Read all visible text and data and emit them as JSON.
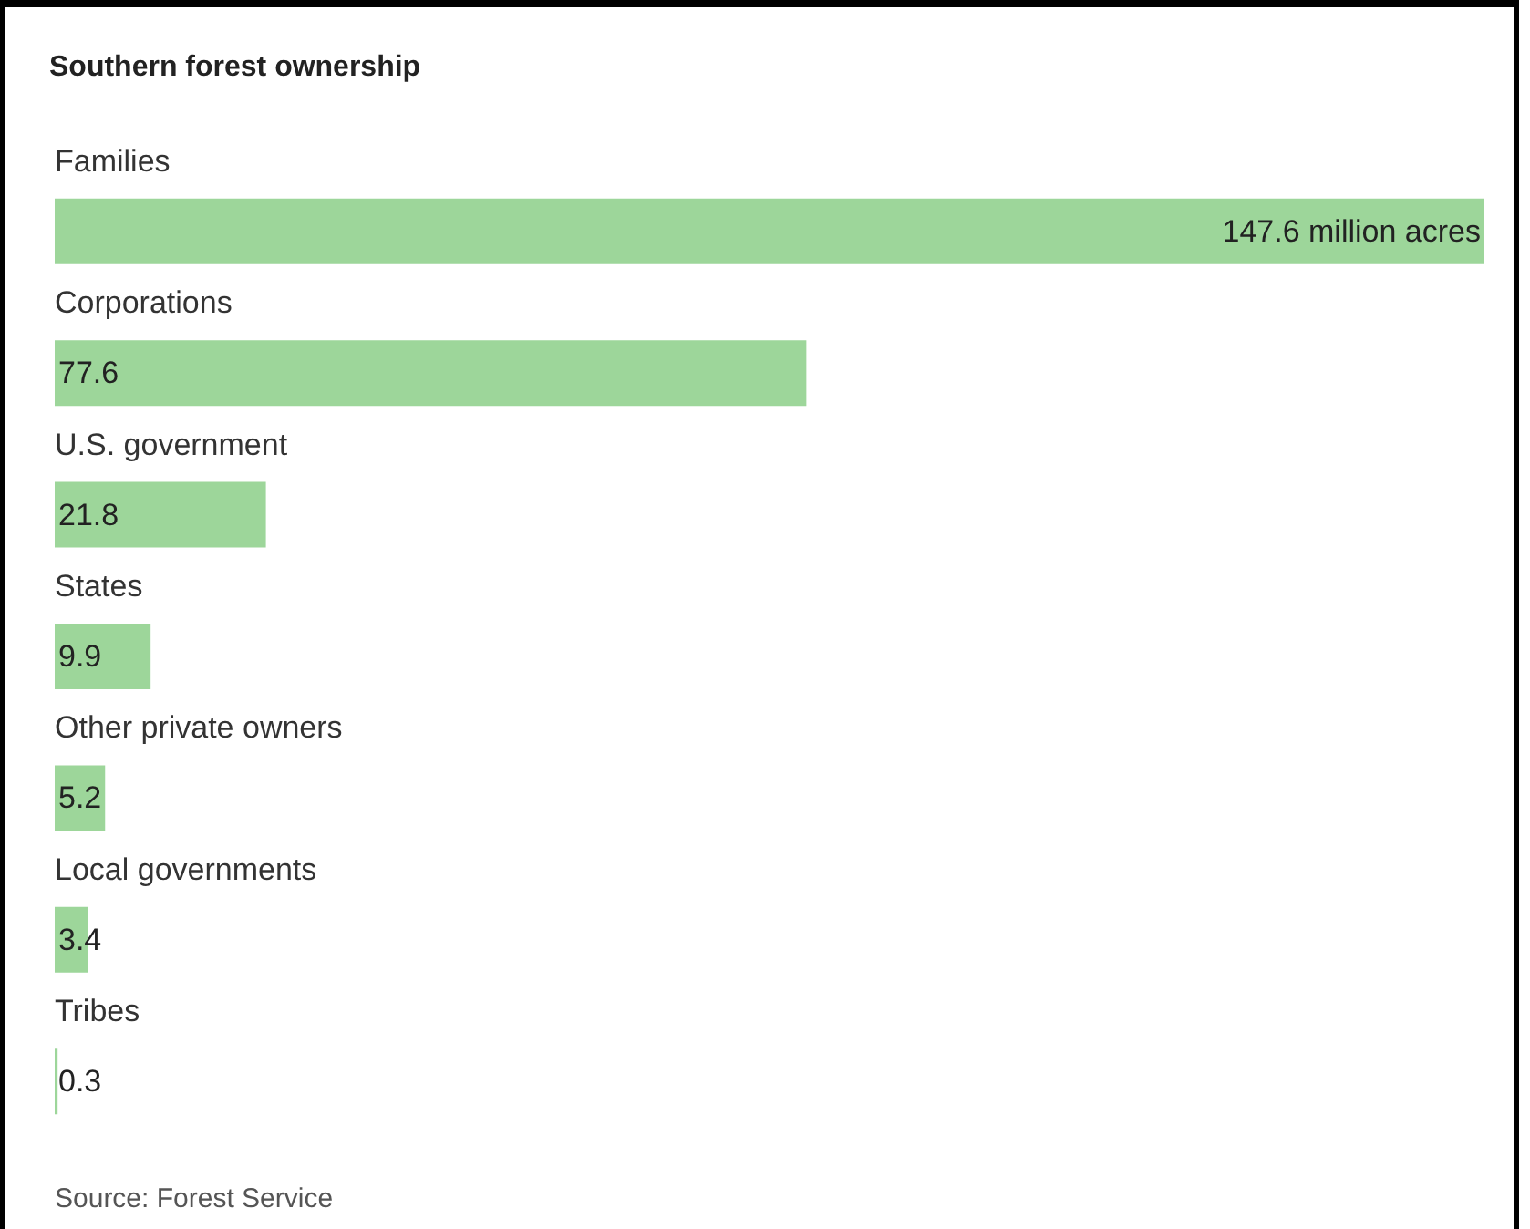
{
  "chart_data": {
    "type": "bar",
    "orientation": "horizontal",
    "title": "Southern forest ownership",
    "categories": [
      "Families",
      "Corporations",
      "U.S. government",
      "States",
      "Other private owners",
      "Local governments",
      "Tribes"
    ],
    "values": [
      147.6,
      77.6,
      21.8,
      9.9,
      5.2,
      3.4,
      0.3
    ],
    "value_labels": [
      "147.6 million acres",
      "77.6",
      "21.8",
      "9.9",
      "5.2",
      "3.4",
      "0.3"
    ],
    "color": "#9dd69a",
    "annotations": [
      "Source: Forest Service"
    ]
  }
}
